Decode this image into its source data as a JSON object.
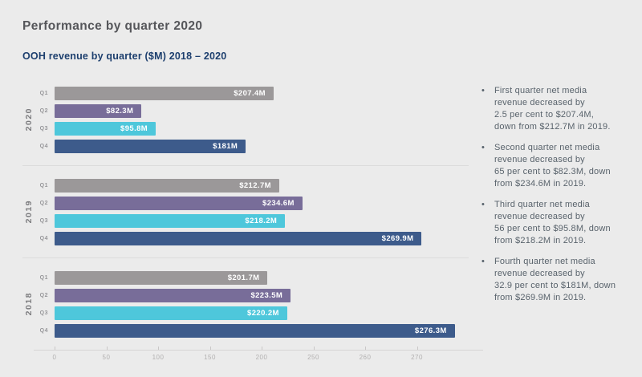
{
  "header": {
    "title": "Performance by quarter 2020",
    "subtitle": "OOH revenue by quarter ($M) 2018 – 2020"
  },
  "chart_data": {
    "type": "bar",
    "orientation": "horizontal",
    "unit": "$M",
    "categories": [
      "Q1",
      "Q2",
      "Q3",
      "Q4"
    ],
    "quarter_colors": {
      "Q1": "#9b9899",
      "Q2": "#786d99",
      "Q3": "#4ec7db",
      "Q4": "#3d5b8b"
    },
    "groups": [
      {
        "year": "2020",
        "values": [
          207.4,
          82.3,
          95.8,
          181
        ],
        "labels": [
          "$207.4M",
          "$82.3M",
          "$95.8M",
          "$181M"
        ]
      },
      {
        "year": "2019",
        "values": [
          212.7,
          234.6,
          218.2,
          269.9
        ],
        "labels": [
          "$212.7M",
          "$234.6M",
          "$218.2M",
          "$269.9M"
        ]
      },
      {
        "year": "2018",
        "values": [
          201.7,
          223.5,
          220.2,
          276.3
        ],
        "labels": [
          "$201.7M",
          "$223.5M",
          "$220.2M",
          "$276.3M"
        ]
      }
    ],
    "x_ticks": [
      "0",
      "50",
      "100",
      "150",
      "200",
      "250",
      "260",
      "270"
    ],
    "x_axis_note": "ticks equally spaced: 50-unit steps up to 250, then 10-unit steps",
    "grid": false,
    "legend": false
  },
  "notes": {
    "bullet": "•",
    "items": [
      "First quarter net media\nrevenue decreased by\n2.5 per cent to $207.4M,\ndown from $212.7M in 2019.",
      "Second quarter net media\nrevenue decreased by\n65 per cent to $82.3M, down\nfrom $234.6M in 2019.",
      "Third quarter net media\nrevenue decreased by\n56 per cent to $95.8M, down\nfrom $218.2M in 2019.",
      "Fourth quarter net media\nrevenue decreased by\n32.9 per cent to $181M, down\nfrom $269.9M in 2019."
    ]
  },
  "colors": {
    "background": "#ebebeb",
    "title": "#55565a",
    "subtitle": "#1d3f6e",
    "divider": "#dbdbdb",
    "axis_line": "#d6d4d4",
    "tick_text": "#b2b0b0",
    "note_text": "#59636c",
    "bar_value_text": "#ffffff"
  }
}
